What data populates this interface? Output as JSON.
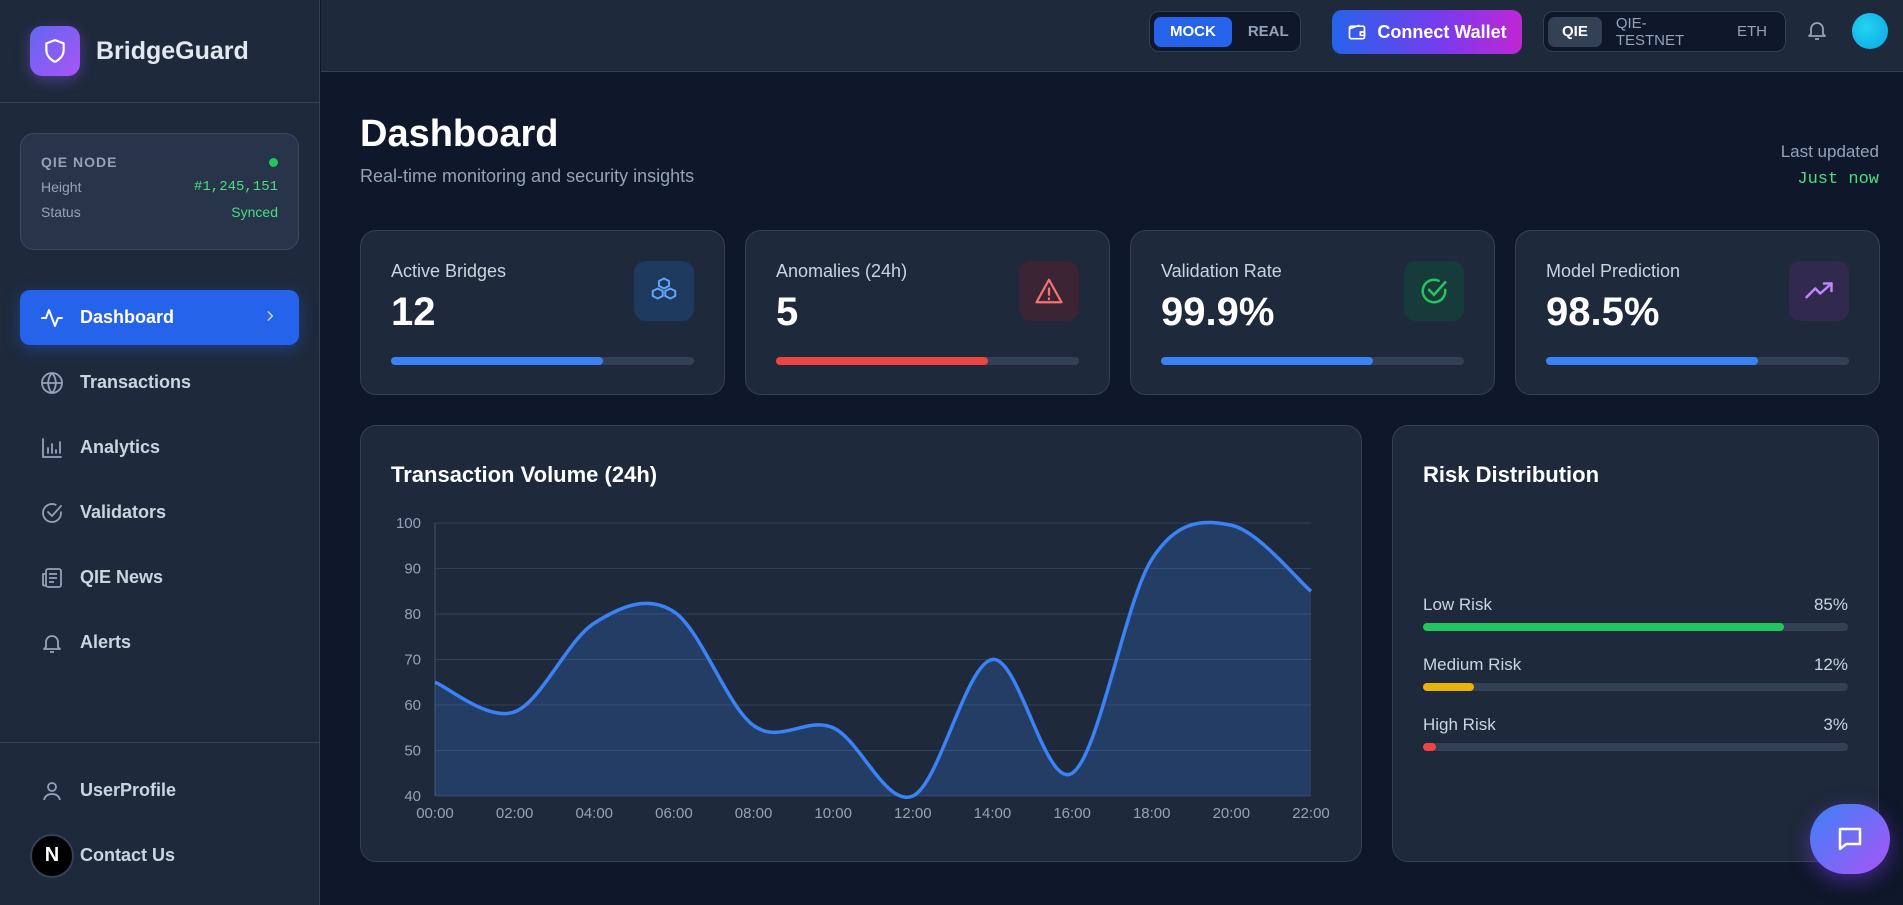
{
  "brand": {
    "name": "BridgeGuard"
  },
  "node": {
    "title": "QIE NODE",
    "height_label": "Height",
    "height_value": "#1,245,151",
    "status_label": "Status",
    "status_value": "Synced"
  },
  "nav": {
    "items": [
      {
        "label": "Dashboard",
        "icon": "activity-icon"
      },
      {
        "label": "Transactions",
        "icon": "globe-icon"
      },
      {
        "label": "Analytics",
        "icon": "bar-chart-icon"
      },
      {
        "label": "Validators",
        "icon": "check-circle-icon"
      },
      {
        "label": "QIE News",
        "icon": "newspaper-icon"
      },
      {
        "label": "Alerts",
        "icon": "bell-icon"
      }
    ],
    "bottom": [
      {
        "label": "UserProfile",
        "icon": "user-icon"
      },
      {
        "label": "Contact Us",
        "icon": "n-logo-icon",
        "avatar_letter": "N"
      }
    ]
  },
  "header": {
    "mode": {
      "options": [
        "MOCK",
        "REAL"
      ],
      "selected": "MOCK"
    },
    "connect_label": "Connect Wallet",
    "networks": {
      "options": [
        "QIE",
        "QIE-TESTNET",
        "ETH"
      ],
      "selected": "QIE"
    }
  },
  "page": {
    "title": "Dashboard",
    "subtitle": "Real-time monitoring and security insights",
    "last_updated_label": "Last updated",
    "last_updated_value": "Just now"
  },
  "stats": [
    {
      "label": "Active Bridges",
      "value": "12",
      "progress": 0.7,
      "color": "#3b82f6",
      "icon_bg": "#1e3a5f",
      "icon": "boxes-icon"
    },
    {
      "label": "Anomalies (24h)",
      "value": "5",
      "progress": 0.7,
      "color": "#ef4444",
      "icon_bg": "#3b2433",
      "icon": "alert-triangle-icon"
    },
    {
      "label": "Validation Rate",
      "value": "99.9%",
      "progress": 0.7,
      "color": "#3b82f6",
      "icon_bg": "#173a3a",
      "icon": "check-circle-icon"
    },
    {
      "label": "Model Prediction",
      "value": "98.5%",
      "progress": 0.7,
      "color": "#3b82f6",
      "icon_bg": "#32294f",
      "icon": "trending-up-icon"
    }
  ],
  "chart_data": {
    "type": "area",
    "title": "Transaction Volume (24h)",
    "categories": [
      "00:00",
      "02:00",
      "04:00",
      "06:00",
      "08:00",
      "10:00",
      "12:00",
      "14:00",
      "16:00",
      "18:00",
      "20:00",
      "22:00"
    ],
    "x": [
      0,
      1,
      2,
      3,
      4,
      5,
      6,
      7,
      8,
      9,
      10,
      11
    ],
    "values": [
      65,
      58.5,
      78,
      80.5,
      55.5,
      55,
      40,
      70,
      45,
      92,
      99.5,
      85
    ],
    "ylim": [
      40,
      100
    ],
    "yticks": [
      40,
      50,
      60,
      70,
      80,
      90,
      100
    ],
    "xlabel": "",
    "ylabel": "",
    "grid": true,
    "line_color": "#3b82f6"
  },
  "risk": {
    "title": "Risk Distribution",
    "items": [
      {
        "label": "Low Risk",
        "value": 85,
        "display": "85%",
        "color": "#22c55e"
      },
      {
        "label": "Medium Risk",
        "value": 12,
        "display": "12%",
        "color": "#eab308"
      },
      {
        "label": "High Risk",
        "value": 3,
        "display": "3%",
        "color": "#ef4444"
      }
    ]
  }
}
